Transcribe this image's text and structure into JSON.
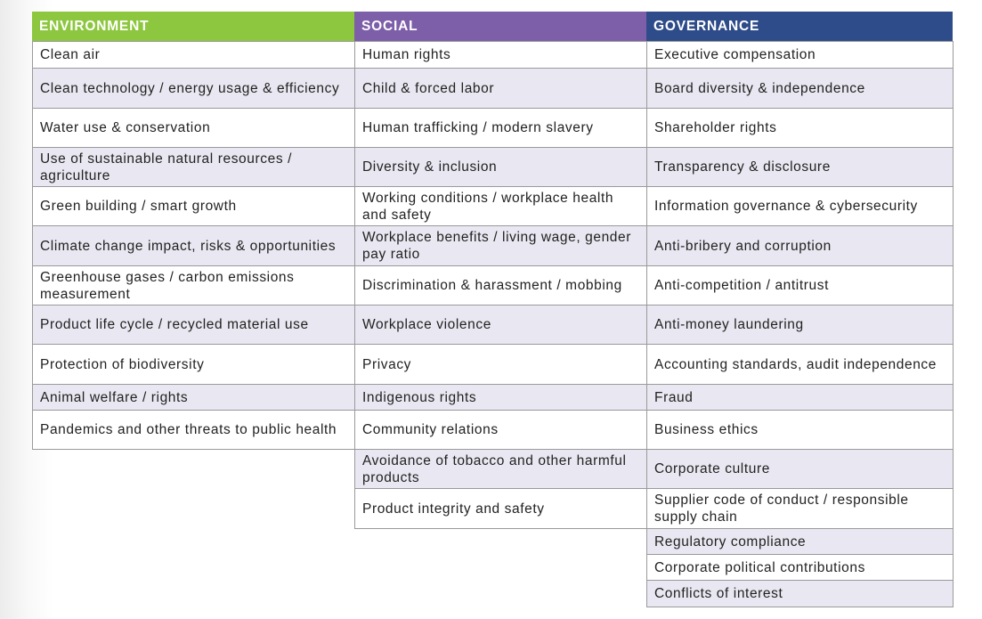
{
  "table": {
    "columns": [
      {
        "header": "ENVIRONMENT",
        "items": [
          "Clean air",
          "Clean technology / energy usage & efficiency",
          "Water use & conservation",
          "Use of sustainable natural resources / agriculture",
          "Green building / smart growth",
          "Climate change impact, risks & opportunities",
          "Greenhouse gases / carbon emissions measurement",
          "Product life cycle / recycled material use",
          "Protection of biodiversity",
          "Animal welfare / rights",
          "Pandemics and other threats to public health"
        ]
      },
      {
        "header": "SOCIAL",
        "items": [
          "Human rights",
          "Child & forced labor",
          "Human trafficking / modern slavery",
          "Diversity & inclusion",
          "Working conditions / workplace health and safety",
          "Workplace benefits / living wage, gender pay ratio",
          "Discrimination & harassment / mobbing",
          "Workplace violence",
          "Privacy",
          "Indigenous rights",
          "Community relations",
          "Avoidance of tobacco and other harmful products",
          "Product integrity and safety"
        ]
      },
      {
        "header": "GOVERNANCE",
        "items": [
          "Executive compensation",
          "Board diversity & independence",
          "Shareholder rights",
          "Transparency & disclosure",
          "Information governance & cybersecurity",
          "Anti-bribery and corruption",
          "Anti-competition / antitrust",
          "Anti-money laundering",
          "Accounting standards, audit independence",
          "Fraud",
          "Business ethics",
          "Corporate culture",
          "Supplier code of conduct / responsible supply chain",
          "Regulatory compliance",
          "Corporate political contributions",
          "Conflicts of interest"
        ]
      }
    ]
  }
}
